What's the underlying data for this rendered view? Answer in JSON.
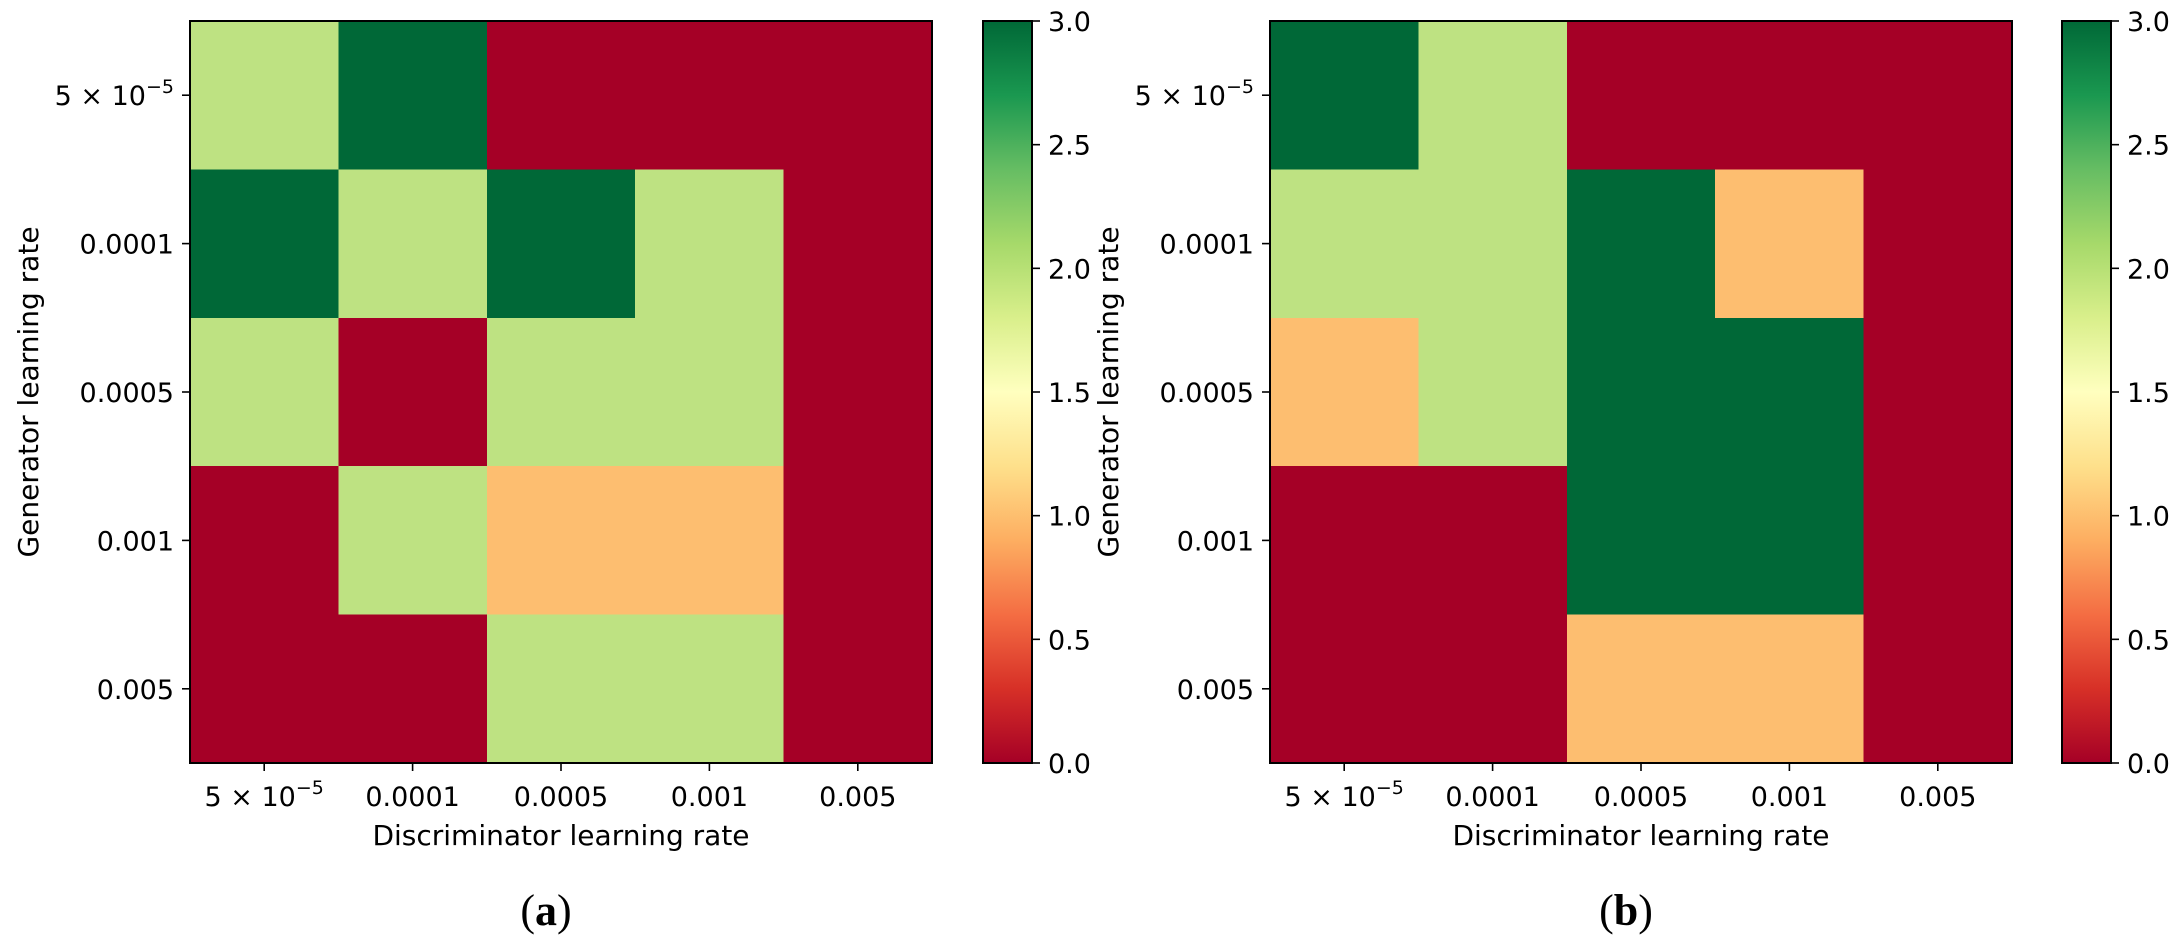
{
  "chart_data": [
    {
      "type": "heatmap",
      "caption_letter": "a",
      "x_categories": [
        "5 × 10⁻⁵",
        "0.0001",
        "0.0005",
        "0.001",
        "0.005"
      ],
      "y_categories": [
        "5 × 10⁻⁵",
        "0.0001",
        "0.0005",
        "0.001",
        "0.005"
      ],
      "xlabel": "Discriminator learning rate",
      "ylabel": "Generator learning rate",
      "values": [
        [
          2,
          3,
          0,
          0,
          0
        ],
        [
          3,
          2,
          3,
          2,
          0
        ],
        [
          2,
          0,
          2,
          2,
          0
        ],
        [
          0,
          2,
          1,
          1,
          0
        ],
        [
          0,
          0,
          2,
          2,
          0
        ]
      ],
      "colorbar": {
        "min": 0.0,
        "max": 3.0,
        "ticks": [
          "0.0",
          "0.5",
          "1.0",
          "1.5",
          "2.0",
          "2.5",
          "3.0"
        ],
        "colormap": "RdYlGn"
      }
    },
    {
      "type": "heatmap",
      "caption_letter": "b",
      "x_categories": [
        "5 × 10⁻⁵",
        "0.0001",
        "0.0005",
        "0.001",
        "0.005"
      ],
      "y_categories": [
        "5 × 10⁻⁵",
        "0.0001",
        "0.0005",
        "0.001",
        "0.005"
      ],
      "xlabel": "Discriminator learning rate",
      "ylabel": "Generator learning rate",
      "values": [
        [
          3,
          2,
          0,
          0,
          0
        ],
        [
          2,
          2,
          3,
          1,
          0
        ],
        [
          1,
          2,
          3,
          3,
          0
        ],
        [
          0,
          0,
          3,
          3,
          0
        ],
        [
          0,
          0,
          1,
          1,
          0
        ]
      ],
      "colorbar": {
        "min": 0.0,
        "max": 3.0,
        "ticks": [
          "0.0",
          "0.5",
          "1.0",
          "1.5",
          "2.0",
          "2.5",
          "3.0"
        ],
        "colormap": "RdYlGn"
      }
    }
  ]
}
